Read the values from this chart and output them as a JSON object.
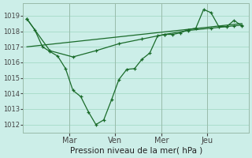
{
  "xlabel": "Pression niveau de la mer( hPa )",
  "bg_color": "#cceee8",
  "grid_color": "#aaddcc",
  "line_color": "#1a6b2a",
  "ylim": [
    1011.5,
    1019.8
  ],
  "yticks": [
    1012,
    1013,
    1014,
    1015,
    1016,
    1017,
    1018,
    1019
  ],
  "day_labels": [
    "Mar",
    "Ven",
    "Mer",
    "Jeu"
  ],
  "day_positions": [
    1,
    2,
    3,
    4
  ],
  "vline_positions": [
    1,
    2,
    3,
    4
  ],
  "xmin": 0.0,
  "xmax": 4.9,
  "line1_x": [
    0.08,
    0.25,
    0.42,
    0.58,
    0.75,
    0.92,
    1.08,
    1.25,
    1.42,
    1.58,
    1.75,
    1.92,
    2.08,
    2.25,
    2.42,
    2.58,
    2.75,
    2.92,
    3.08,
    3.25,
    3.42,
    3.58,
    3.75,
    3.92,
    4.08,
    4.25,
    4.42,
    4.58,
    4.75
  ],
  "line1_y": [
    1018.8,
    1018.1,
    1017.0,
    1016.7,
    1016.4,
    1015.6,
    1014.2,
    1013.8,
    1012.8,
    1012.0,
    1012.3,
    1013.6,
    1014.9,
    1015.55,
    1015.6,
    1016.2,
    1016.6,
    1017.7,
    1017.8,
    1017.8,
    1017.9,
    1018.1,
    1018.2,
    1019.4,
    1019.2,
    1018.3,
    1018.3,
    1018.7,
    1018.35
  ],
  "line2_x": [
    0.08,
    0.58,
    1.08,
    1.58,
    2.08,
    2.58,
    3.08,
    3.58,
    4.08,
    4.58,
    4.75
  ],
  "line2_y": [
    1018.8,
    1016.75,
    1016.35,
    1016.75,
    1017.2,
    1017.5,
    1017.8,
    1018.05,
    1018.2,
    1018.35,
    1018.4
  ],
  "line3_x": [
    0.08,
    4.75
  ],
  "line3_y": [
    1017.0,
    1018.5
  ]
}
